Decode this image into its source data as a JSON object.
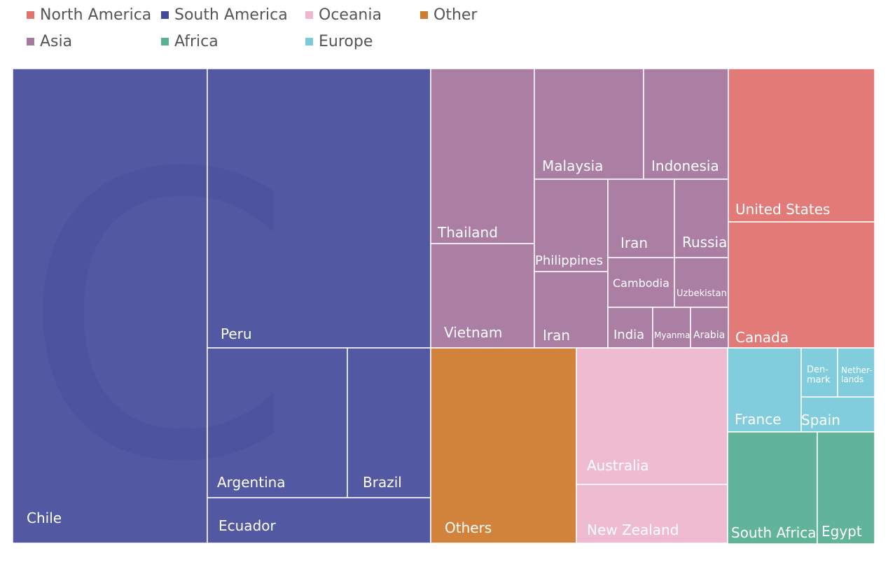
{
  "chart_data": {
    "type": "treemap",
    "legend": [
      {
        "name": "North America",
        "color": "#e07370"
      },
      {
        "name": "South America",
        "color": "#434a9a"
      },
      {
        "name": "Oceania",
        "color": "#eeb7cf"
      },
      {
        "name": "Other",
        "color": "#d07c30"
      },
      {
        "name": "Asia",
        "color": "#a6779f"
      },
      {
        "name": "Africa",
        "color": "#59b093"
      },
      {
        "name": "Europe",
        "color": "#7ac9db"
      }
    ],
    "groups": [
      {
        "region": "South America",
        "color": "#434a9a",
        "items": [
          {
            "label": "Chile",
            "value": 275
          },
          {
            "label": "Peru",
            "value": 127
          },
          {
            "label": "Argentina",
            "value": 42
          },
          {
            "label": "Brazil",
            "value": 25
          },
          {
            "label": "Ecuador",
            "value": 21
          }
        ]
      },
      {
        "region": "Asia",
        "color": "#a6779f",
        "items": [
          {
            "label": "Thailand",
            "value": 29
          },
          {
            "label": "Vietnam",
            "value": 29
          },
          {
            "label": "Malaysia",
            "value": 24
          },
          {
            "label": "Indonesia",
            "value": 18
          },
          {
            "label": "Philippines",
            "value": 12
          },
          {
            "label": "Iran",
            "value": 11
          },
          {
            "label": "Iran",
            "value": 7
          },
          {
            "label": "Russia",
            "value": 7
          },
          {
            "label": "Cambodia",
            "value": 7
          },
          {
            "label": "Uzbekistan",
            "value": 5
          },
          {
            "label": "India",
            "value": 4
          },
          {
            "label": "Myanmar",
            "value": 3
          },
          {
            "label": "Arabia",
            "value": 3
          }
        ]
      },
      {
        "region": "North America",
        "color": "#e07370",
        "items": [
          {
            "label": "United States",
            "value": 46
          },
          {
            "label": "Canada",
            "value": 38
          }
        ]
      },
      {
        "region": "Other",
        "color": "#d07c30",
        "items": [
          {
            "label": "Others",
            "value": 56
          }
        ]
      },
      {
        "region": "Oceania",
        "color": "#eeb7cf",
        "items": [
          {
            "label": "Australia",
            "value": 50
          },
          {
            "label": "New Zealand",
            "value": 22
          }
        ]
      },
      {
        "region": "Europe",
        "color": "#7ac9db",
        "items": [
          {
            "label": "France",
            "value": 13
          },
          {
            "label": "Spain",
            "value": 7
          },
          {
            "label": "Den-mark",
            "value": 3
          },
          {
            "label": "Nether-lands",
            "value": 2
          }
        ]
      },
      {
        "region": "Africa",
        "color": "#59b093",
        "items": [
          {
            "label": "South Africa",
            "value": 13
          },
          {
            "label": "Egypt",
            "value": 9
          }
        ]
      }
    ]
  }
}
